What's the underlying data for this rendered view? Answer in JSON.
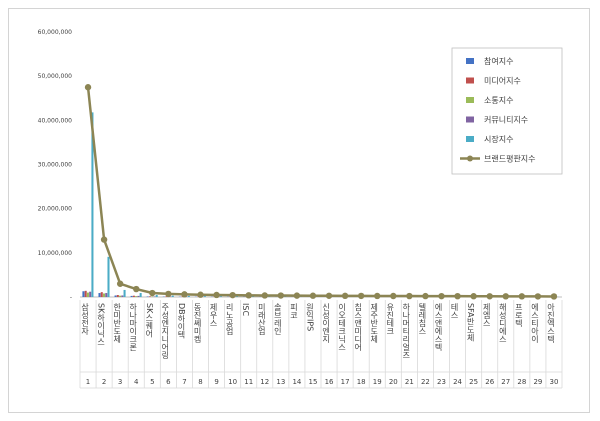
{
  "chart_data": {
    "type": "bar",
    "title": "",
    "xlabel": "",
    "ylabel": "",
    "ylim": [
      0,
      60000000
    ],
    "yticks": [
      0,
      10000000,
      20000000,
      30000000,
      40000000,
      50000000,
      60000000
    ],
    "ytick_labels": [
      "-",
      "10,000,000",
      "20,000,000",
      "30,000,000",
      "40,000,000",
      "50,000,000",
      "60,000,000"
    ],
    "grid": false,
    "legend_position": "top-right",
    "indices": [
      "1",
      "2",
      "3",
      "4",
      "5",
      "6",
      "7",
      "8",
      "9",
      "10",
      "11",
      "12",
      "13",
      "14",
      "15",
      "16",
      "17",
      "18",
      "19",
      "20",
      "21",
      "22",
      "23",
      "24",
      "25",
      "26",
      "27",
      "28",
      "29",
      "30"
    ],
    "categories": [
      "삼성전자",
      "SK하이닉스",
      "한미반도체",
      "하나마이크론",
      "SK스퀘어",
      "주성엔지니어링",
      "DB하이텍",
      "동진쎄미켐",
      "제우스",
      "리노공업",
      "ISC",
      "미래산업",
      "솔브레인",
      "피코",
      "원익IPS",
      "신성이엔지",
      "이오테크닉스",
      "칩스앤미디어",
      "제주반도체",
      "유진테크",
      "하나머티리얼즈",
      "텔레칩스",
      "에스앤에스텍",
      "테스",
      "SFA반도체",
      "제엠스",
      "해성디에스",
      "프로텍",
      "에스티아이",
      "아진엑스텍"
    ],
    "series": [
      {
        "name": "참여지수",
        "kind": "bar",
        "color": "#4472c4",
        "values": [
          1300000,
          900000,
          350000,
          250000,
          120000,
          90000,
          80000,
          70000,
          60000,
          50000,
          45000,
          40000,
          38000,
          35000,
          32000,
          30000,
          28000,
          26000,
          24000,
          22000,
          20000,
          19000,
          18000,
          17000,
          16000,
          15000,
          14000,
          13000,
          12000,
          11000
        ]
      },
      {
        "name": "미디어지수",
        "kind": "bar",
        "color": "#c0504d",
        "values": [
          1400000,
          1100000,
          450000,
          300000,
          150000,
          110000,
          95000,
          85000,
          75000,
          65000,
          55000,
          50000,
          46000,
          43000,
          40000,
          37000,
          34000,
          31000,
          29000,
          27000,
          25000,
          23000,
          21000,
          20000,
          19000,
          18000,
          17000,
          16000,
          15000,
          14000
        ]
      },
      {
        "name": "소통지수",
        "kind": "bar",
        "color": "#9bbb59",
        "values": [
          1000000,
          800000,
          300000,
          200000,
          100000,
          80000,
          70000,
          60000,
          50000,
          45000,
          40000,
          36000,
          33000,
          30000,
          28000,
          26000,
          24000,
          22000,
          20000,
          18000,
          17000,
          16000,
          15000,
          14000,
          13000,
          12000,
          11000,
          10000,
          9000,
          8000
        ]
      },
      {
        "name": "커뮤니티지수",
        "kind": "bar",
        "color": "#8064a2",
        "values": [
          1200000,
          900000,
          350000,
          250000,
          120000,
          90000,
          80000,
          70000,
          60000,
          55000,
          50000,
          45000,
          42000,
          39000,
          36000,
          33000,
          30000,
          27000,
          25000,
          23000,
          21000,
          19000,
          18000,
          17000,
          16000,
          15000,
          14000,
          13000,
          12000,
          11000
        ]
      },
      {
        "name": "시장지수",
        "kind": "bar",
        "color": "#4bacc6",
        "values": [
          41800000,
          9100000,
          1600000,
          900000,
          450000,
          300000,
          250000,
          200000,
          180000,
          160000,
          140000,
          130000,
          120000,
          110000,
          100000,
          95000,
          90000,
          85000,
          80000,
          75000,
          70000,
          65000,
          60000,
          55000,
          50000,
          45000,
          40000,
          35000,
          30000,
          25000
        ]
      },
      {
        "name": "브랜드평판지수",
        "kind": "line",
        "color": "#8c8554",
        "values": [
          47500000,
          13000000,
          3000000,
          1800000,
          900000,
          700000,
          600000,
          520000,
          460000,
          420000,
          380000,
          350000,
          330000,
          310000,
          290000,
          275000,
          260000,
          245000,
          235000,
          225000,
          215000,
          205000,
          195000,
          185000,
          175000,
          165000,
          155000,
          145000,
          135000,
          125000
        ]
      }
    ]
  }
}
